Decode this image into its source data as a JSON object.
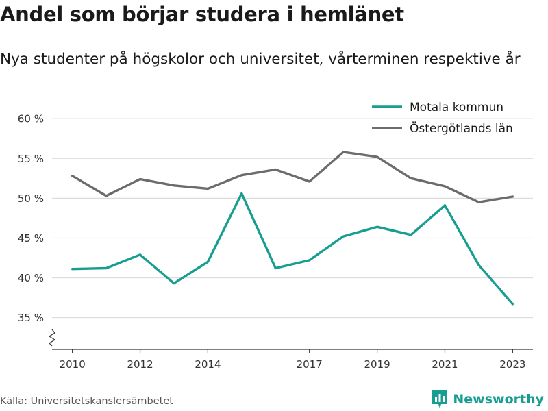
{
  "title": "Andel som börjar studera i hemlänet",
  "subtitle": "Nya studenter på högskolor och universitet, vårterminen respektive år",
  "source": "Källa: Universitetskanslersämbetet",
  "brand": {
    "name": "Newsworthy",
    "icon": "newsworthy-logo-icon",
    "color": "#179e91"
  },
  "chart_data": {
    "type": "line",
    "x": [
      2010,
      2011,
      2012,
      2013,
      2014,
      2015,
      2016,
      2017,
      2018,
      2019,
      2020,
      2021,
      2022,
      2023
    ],
    "x_ticks": [
      2010,
      2012,
      2014,
      2017,
      2019,
      2021,
      2023
    ],
    "x_tick_labels": [
      "2010",
      "2012",
      "2014",
      "2017",
      "2019",
      "2021",
      "2023"
    ],
    "xlim": [
      2009.4,
      2023.6
    ],
    "ylim": [
      31,
      62
    ],
    "y_ticks": [
      35,
      40,
      45,
      50,
      55,
      60
    ],
    "y_tick_labels": [
      "35 %",
      "40 %",
      "45 %",
      "50 %",
      "55 %",
      "60 %"
    ],
    "axis_break": true,
    "grid": true,
    "legend_position": "top-right",
    "series": [
      {
        "name": "Motala kommun",
        "color": "#179e91",
        "values": [
          41.1,
          41.2,
          42.9,
          39.3,
          42.0,
          50.6,
          41.2,
          42.2,
          45.2,
          46.4,
          45.4,
          49.1,
          41.6,
          36.7
        ]
      },
      {
        "name": "Östergötlands län",
        "color": "#6b6b70",
        "values": [
          52.8,
          50.3,
          52.4,
          51.6,
          51.2,
          52.9,
          53.6,
          52.1,
          55.8,
          55.2,
          52.5,
          51.5,
          49.5,
          50.2
        ]
      }
    ]
  }
}
